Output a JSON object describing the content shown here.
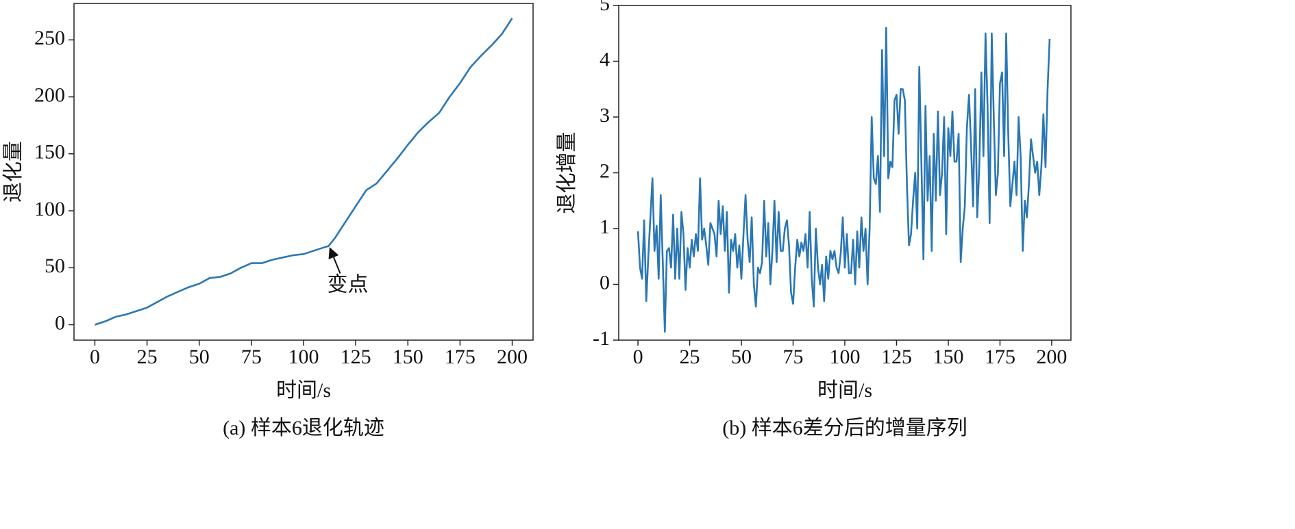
{
  "chart_data": [
    {
      "type": "line",
      "title": "(a) 样本6退化轨迹",
      "xlabel": "时间/s",
      "ylabel": "退化量",
      "color": "#2a77b4",
      "x": [
        0,
        5,
        10,
        15,
        20,
        25,
        30,
        35,
        40,
        45,
        50,
        55,
        60,
        65,
        70,
        75,
        80,
        85,
        90,
        95,
        100,
        105,
        110,
        112,
        115,
        120,
        125,
        130,
        135,
        140,
        145,
        150,
        155,
        160,
        165,
        170,
        175,
        180,
        185,
        190,
        195,
        200
      ],
      "values": [
        0,
        3,
        7,
        9,
        12,
        15,
        20,
        25,
        29,
        33,
        36,
        41,
        42,
        45,
        50,
        54,
        54,
        57,
        59,
        61,
        62,
        65,
        68,
        69,
        76,
        90,
        104,
        118,
        124,
        135,
        146,
        158,
        169,
        178,
        186,
        200,
        212,
        226,
        236,
        245,
        255,
        269
      ],
      "xlim": [
        -10,
        210
      ],
      "ylim": [
        -13.5,
        282
      ],
      "xticks": [
        0,
        25,
        50,
        75,
        100,
        125,
        150,
        175,
        200
      ],
      "yticks": [
        0,
        50,
        100,
        150,
        200,
        250
      ],
      "annotation": {
        "text": "变点",
        "x": 112,
        "y": 69
      }
    },
    {
      "type": "line",
      "title": "(b) 样本6差分后的增量序列",
      "xlabel": "时间/s",
      "ylabel": "退化增量",
      "color": "#2a77b4",
      "x": [
        0,
        1,
        2,
        3,
        4,
        5,
        6,
        7,
        8,
        9,
        10,
        11,
        12,
        13,
        14,
        15,
        16,
        17,
        18,
        19,
        20,
        21,
        22,
        23,
        24,
        25,
        26,
        27,
        28,
        29,
        30,
        31,
        32,
        33,
        34,
        35,
        36,
        37,
        38,
        39,
        40,
        41,
        42,
        43,
        44,
        45,
        46,
        47,
        48,
        49,
        50,
        51,
        52,
        53,
        54,
        55,
        56,
        57,
        58,
        59,
        60,
        61,
        62,
        63,
        64,
        65,
        66,
        67,
        68,
        69,
        70,
        71,
        72,
        73,
        74,
        75,
        76,
        77,
        78,
        79,
        80,
        81,
        82,
        83,
        84,
        85,
        86,
        87,
        88,
        89,
        90,
        91,
        92,
        93,
        94,
        95,
        96,
        97,
        98,
        99,
        100,
        101,
        102,
        103,
        104,
        105,
        106,
        107,
        108,
        109,
        110,
        111,
        112,
        113,
        114,
        115,
        116,
        117,
        118,
        119,
        120,
        121,
        122,
        123,
        124,
        125,
        126,
        127,
        128,
        129,
        130,
        131,
        132,
        133,
        134,
        135,
        136,
        137,
        138,
        139,
        140,
        141,
        142,
        143,
        144,
        145,
        146,
        147,
        148,
        149,
        150,
        151,
        152,
        153,
        154,
        155,
        156,
        157,
        158,
        159,
        160,
        161,
        162,
        163,
        164,
        165,
        166,
        167,
        168,
        169,
        170,
        171,
        172,
        173,
        174,
        175,
        176,
        177,
        178,
        179,
        180,
        181,
        182,
        183,
        184,
        185,
        186,
        187,
        188,
        189,
        190,
        191,
        192,
        193,
        194,
        195,
        196,
        197,
        198,
        199
      ],
      "values": [
        0.95,
        0.3,
        0.1,
        1.15,
        -0.3,
        0.5,
        1.2,
        1.9,
        0.6,
        1.05,
        0.1,
        1.6,
        0.4,
        -0.85,
        0.6,
        0.65,
        0.3,
        1.25,
        0.1,
        1.0,
        0.1,
        1.3,
        0.9,
        -0.1,
        0.65,
        0.3,
        0.8,
        0.5,
        0.9,
        0.6,
        1.9,
        0.8,
        1.0,
        0.7,
        0.35,
        1.1,
        1.0,
        0.9,
        0.5,
        1.5,
        0.9,
        1.4,
        0.6,
        1.3,
        -0.15,
        0.8,
        0.6,
        0.9,
        0.3,
        0.7,
        0.1,
        0.9,
        1.6,
        0.8,
        0.4,
        1.2,
        0.0,
        -0.4,
        0.3,
        0.2,
        0.4,
        1.5,
        0.5,
        1.1,
        0.0,
        0.6,
        1.5,
        0.4,
        1.3,
        0.6,
        0.6,
        1.0,
        1.15,
        0.7,
        -0.15,
        -0.35,
        0.3,
        0.8,
        0.5,
        0.75,
        0.6,
        0.9,
        0.3,
        1.3,
        0.1,
        -0.4,
        1.0,
        0.3,
        0.0,
        0.35,
        -0.3,
        0.5,
        0.1,
        0.6,
        0.45,
        0.6,
        0.3,
        0.2,
        0.55,
        1.2,
        0.3,
        0.9,
        0.2,
        0.2,
        0.8,
        0.0,
        0.95,
        0.3,
        1.2,
        0.6,
        1.0,
        0.0,
        1.0,
        3.0,
        1.9,
        1.8,
        2.3,
        1.3,
        4.2,
        2.3,
        4.6,
        1.9,
        2.2,
        2.1,
        3.3,
        3.4,
        2.7,
        3.5,
        3.5,
        3.3,
        1.8,
        0.7,
        0.9,
        1.5,
        2.0,
        1.0,
        3.9,
        2.2,
        0.45,
        3.2,
        1.5,
        2.3,
        0.6,
        2.7,
        1.5,
        3.1,
        1.6,
        2.0,
        3.0,
        0.9,
        2.8,
        2.3,
        3.1,
        2.2,
        2.2,
        2.7,
        0.4,
        1.0,
        1.4,
        2.8,
        3.4,
        2.5,
        1.4,
        3.5,
        1.2,
        2.1,
        3.8,
        2.3,
        4.5,
        3.2,
        1.1,
        4.5,
        3.0,
        1.6,
        2.0,
        3.6,
        3.8,
        2.3,
        4.5,
        2.7,
        1.4,
        1.8,
        2.2,
        1.6,
        3.0,
        2.3,
        0.6,
        1.5,
        1.2,
        1.8,
        2.6,
        2.3,
        2.0,
        2.2,
        1.6,
        2.1,
        3.05,
        2.1,
        3.5,
        4.4
      ],
      "xlim": [
        -9.3,
        209.3
      ],
      "ylim": [
        -1,
        5
      ],
      "xticks": [
        0,
        25,
        50,
        75,
        100,
        125,
        150,
        175,
        200
      ],
      "yticks": [
        -1,
        0,
        1,
        2,
        3,
        4,
        5
      ]
    }
  ]
}
